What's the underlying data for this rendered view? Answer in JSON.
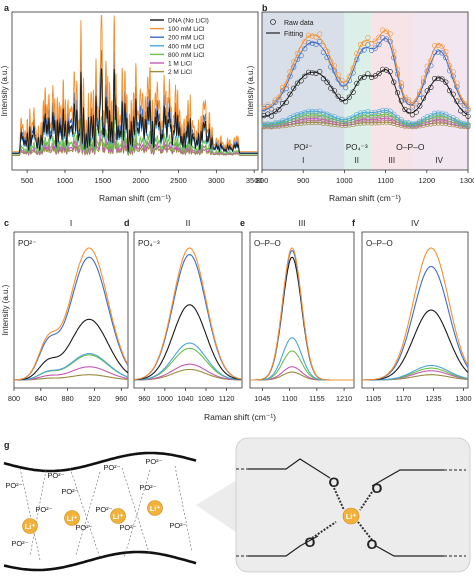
{
  "panel_labels": {
    "a": "a",
    "b": "b",
    "c": "c",
    "d": "d",
    "e": "e",
    "f": "f",
    "g": "g"
  },
  "colors": {
    "dna": "#1a1a1a",
    "licl_100": "#f39233",
    "licl_200": "#3f6cc4",
    "licl_400": "#49a7d8",
    "licl_800": "#6cbf4a",
    "licl_1m": "#c45ab4",
    "licl_2m": "#9a8b3c",
    "fit": "#1a1a1a",
    "region_I": "#d9dfe8",
    "region_II": "#dcefe9",
    "region_III": "#f6e4e8",
    "region_IV": "#f2e6f0",
    "li_ion": "#f2b23a",
    "lower_bg": "#ececec"
  },
  "chart_data": [
    {
      "panel": "a",
      "type": "line",
      "xlabel": "Raman shift (cm⁻¹)",
      "ylabel": "Intensity (a.u.)",
      "xlim": [
        300,
        3550
      ],
      "xticks": [
        500,
        1000,
        1500,
        2000,
        2500,
        3000,
        3500
      ],
      "legend_position": "top-right",
      "series": [
        {
          "name": "DNA (No LiCl)",
          "color_key": "dna",
          "amplitude": 0.62
        },
        {
          "name": "100 mM LiCl",
          "color_key": "licl_100",
          "amplitude": 1.0
        },
        {
          "name": "200 mM LiCl",
          "color_key": "licl_200",
          "amplitude": 0.75
        },
        {
          "name": "400 mM LiCl",
          "color_key": "licl_400",
          "amplitude": 0.55
        },
        {
          "name": "800 mM LiCl",
          "color_key": "licl_800",
          "amplitude": 0.28
        },
        {
          "name": "1 M LiCl",
          "color_key": "licl_1m",
          "amplitude": 0.18
        },
        {
          "name": "2 M LiCl",
          "color_key": "licl_2m",
          "amplitude": 0.12
        }
      ]
    },
    {
      "panel": "b",
      "type": "scatter",
      "xlabel": "Raman shift (cm⁻¹)",
      "ylabel": "Intensity (a.u.)",
      "xlim": [
        800,
        1300
      ],
      "xticks": [
        800,
        900,
        1000,
        1100,
        1200,
        1300
      ],
      "legend": [
        "Raw data",
        "Fitting"
      ],
      "regions": [
        {
          "label": "I",
          "assignment": "PO²⁻",
          "from": 800,
          "to": 1000,
          "color_key": "region_I"
        },
        {
          "label": "II",
          "assignment": "PO₄⁻³",
          "from": 1000,
          "to": 1065,
          "color_key": "region_II"
        },
        {
          "label": "III",
          "assignment": "O–P–O",
          "from": 1065,
          "to": 1170,
          "color_key": "region_III"
        },
        {
          "label": "IV",
          "assignment": "",
          "from": 1170,
          "to": 1300,
          "color_key": "region_IV"
        }
      ],
      "overlay_label": "O–P–O"
    },
    {
      "panel": "c",
      "type": "line",
      "title": "I",
      "species": "PO²⁻",
      "xlim": [
        800,
        970
      ],
      "xticks": [
        800,
        840,
        880,
        920,
        960
      ],
      "peak": 912,
      "width": 28,
      "series_heights": {
        "licl_100": 1.0,
        "licl_200": 0.93,
        "dna": 0.46,
        "licl_400": 0.2,
        "licl_800": 0.19,
        "licl_1m": 0.1,
        "licl_2m": 0.04
      }
    },
    {
      "panel": "d",
      "type": "line",
      "title": "II",
      "species": "PO₄⁻³",
      "xlim": [
        940,
        1150
      ],
      "xticks": [
        960,
        1000,
        1040,
        1080,
        1120
      ],
      "peak": 1048,
      "width": 32,
      "series_heights": {
        "licl_100": 1.0,
        "licl_200": 0.95,
        "dna": 0.57,
        "licl_400": 0.28,
        "licl_800": 0.24,
        "licl_1m": 0.12,
        "licl_2m": 0.08
      }
    },
    {
      "panel": "e",
      "type": "line",
      "title": "III",
      "species": "O–P–O",
      "xlim": [
        1020,
        1230
      ],
      "xticks": [
        1045,
        1100,
        1155,
        1210
      ],
      "peak": 1105,
      "width": 19,
      "series_heights": {
        "licl_100": 1.0,
        "licl_200": 0.98,
        "dna": 0.93,
        "licl_400": 0.32,
        "licl_800": 0.22,
        "licl_1m": 0.1,
        "licl_2m": 0.06
      }
    },
    {
      "panel": "f",
      "type": "line",
      "title": "IV",
      "species": "O–P–O",
      "xlim": [
        1080,
        1310
      ],
      "xticks": [
        1105,
        1170,
        1235,
        1300
      ],
      "peak": 1230,
      "width": 38,
      "series_heights": {
        "licl_100": 1.0,
        "licl_200": 0.86,
        "dna": 0.53,
        "licl_400": 0.11,
        "licl_800": 0.09,
        "licl_1m": 0.07,
        "licl_2m": 0.04
      }
    }
  ],
  "shared_axis": {
    "xlabel": "Raman shift (cm⁻¹)",
    "ylabel": "Intensity (a.u.)"
  },
  "schematic": {
    "ion_label": "Li⁺",
    "phosphate_label": "PO²⁻",
    "oxygen_label": "O"
  }
}
